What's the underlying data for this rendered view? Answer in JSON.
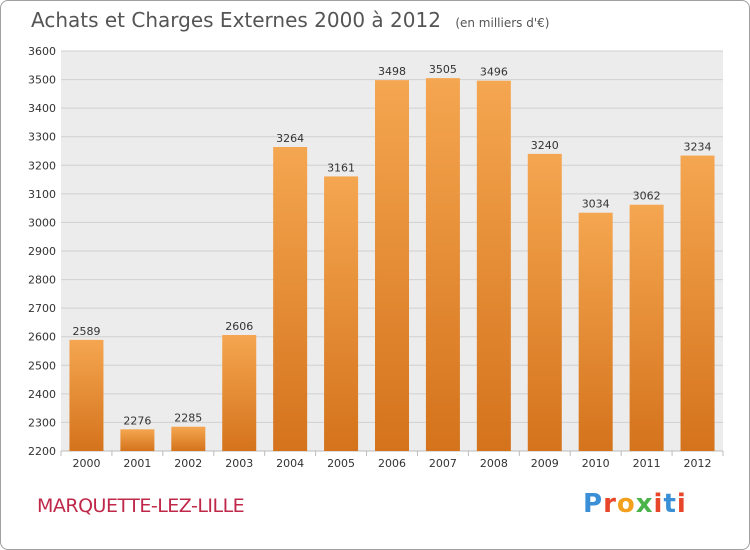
{
  "header": {
    "title": "Achats et Charges Externes 2000 à 2012",
    "unit": "(en milliers d'€)"
  },
  "footer": {
    "commune": "MARQUETTE-LEZ-LILLE",
    "logo_text": "Proxiti",
    "logo_colors": [
      "#3a8fd6",
      "#e8462a",
      "#f2a01e",
      "#4ab34a",
      "#e8462a",
      "#3a8fd6",
      "#e8462a"
    ]
  },
  "colors": {
    "bar_top": "#f5a650",
    "bar_bottom": "#d4731c",
    "grid": "#d0d0d0",
    "plot_bg": "#ececec",
    "commune": "#c0284a"
  },
  "chart_data": {
    "type": "bar",
    "title": "Achats et Charges Externes 2000 à 2012",
    "subtitle": "(en milliers d'€)",
    "categories": [
      "2000",
      "2001",
      "2002",
      "2003",
      "2004",
      "2005",
      "2006",
      "2007",
      "2008",
      "2009",
      "2010",
      "2011",
      "2012"
    ],
    "values": [
      2589,
      2276,
      2285,
      2606,
      3264,
      3161,
      3498,
      3505,
      3496,
      3240,
      3034,
      3062,
      3234
    ],
    "ylim": [
      2200,
      3600
    ],
    "yticks": [
      2200,
      2300,
      2400,
      2500,
      2600,
      2700,
      2800,
      2900,
      3000,
      3100,
      3200,
      3300,
      3400,
      3500,
      3600
    ],
    "grid": true,
    "xlabel": "",
    "ylabel": ""
  }
}
